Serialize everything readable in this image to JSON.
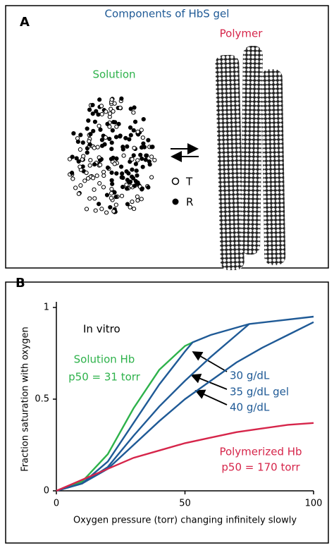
{
  "panel_a": {
    "label": "A",
    "title": "Components of HbS gel",
    "polymer": "Polymer",
    "solution": "Solution",
    "legend": [
      "T",
      "R"
    ]
  },
  "chart_data": {
    "type": "line",
    "panel_label": "B",
    "y_label": "Fraction saturation with oxygen",
    "x_label": "Oxygen pressure (torr) changing infinitely slowly",
    "xlim": [
      0,
      100
    ],
    "xticks": [
      0,
      50,
      100
    ],
    "ylim": [
      0,
      1
    ],
    "yticks": [
      0,
      0.5,
      1
    ],
    "series": [
      {
        "name": "Solution Hb",
        "color": "#2eb24b",
        "x": [
          0,
          10,
          20,
          30,
          40,
          50,
          53
        ],
        "values": [
          0,
          0.05,
          0.2,
          0.45,
          0.66,
          0.79,
          0.81
        ]
      },
      {
        "name": "30 g/dL",
        "color": "#1f5a96",
        "x": [
          0,
          10,
          20,
          30,
          40,
          50,
          53,
          60,
          75,
          100
        ],
        "values": [
          0,
          0.04,
          0.16,
          0.37,
          0.58,
          0.76,
          0.81,
          0.85,
          0.91,
          0.95
        ]
      },
      {
        "name": "35 g/dL gel",
        "color": "#1f5a96",
        "x": [
          0,
          10,
          20,
          30,
          40,
          50,
          60,
          70,
          75
        ],
        "values": [
          0,
          0.04,
          0.13,
          0.3,
          0.46,
          0.6,
          0.73,
          0.85,
          0.91
        ]
      },
      {
        "name": "40 g/dL",
        "color": "#1f5a96",
        "x": [
          0,
          10,
          20,
          30,
          40,
          50,
          60,
          70,
          80,
          90,
          100
        ],
        "values": [
          0,
          0.04,
          0.12,
          0.25,
          0.38,
          0.5,
          0.6,
          0.7,
          0.78,
          0.85,
          0.92
        ]
      },
      {
        "name": "Polymerized Hb",
        "color": "#d6254a",
        "x": [
          0,
          10,
          20,
          30,
          40,
          50,
          60,
          70,
          80,
          90,
          100
        ],
        "values": [
          0,
          0.06,
          0.12,
          0.18,
          0.22,
          0.26,
          0.29,
          0.32,
          0.34,
          0.36,
          0.37
        ]
      }
    ],
    "annotations": [
      {
        "text": "In vitro",
        "color": "#000000"
      },
      {
        "text": "p50 = 31 torr",
        "color": "#2eb24b"
      },
      {
        "text": "p50 = 170 torr",
        "color": "#d6254a"
      }
    ]
  }
}
